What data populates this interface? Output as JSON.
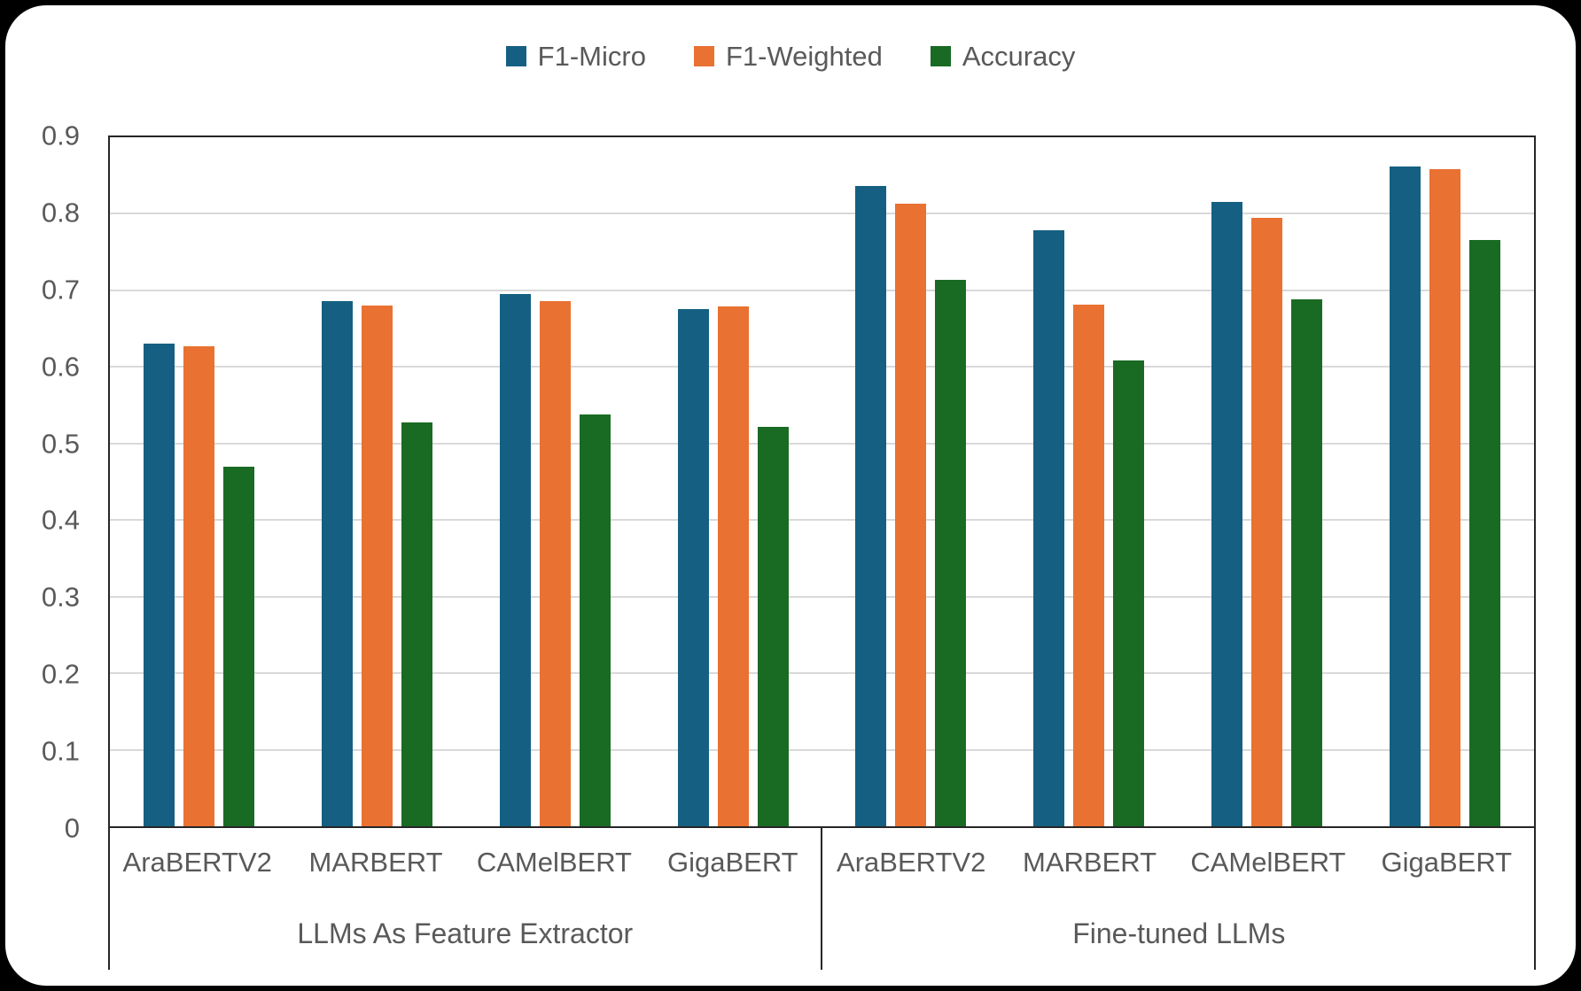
{
  "chart_data": {
    "type": "bar",
    "title": "",
    "legend_position": "top",
    "grid": true,
    "y_axis": {
      "min": 0,
      "max": 0.9,
      "step": 0.1,
      "ticks": [
        "0",
        "0.1",
        "0.2",
        "0.3",
        "0.4",
        "0.5",
        "0.6",
        "0.7",
        "0.8",
        "0.9"
      ]
    },
    "categories": [
      "AraBERTV2",
      "MARBERT",
      "CAMelBERT",
      "GigaBERT",
      "AraBERTV2",
      "MARBERT",
      "CAMelBERT",
      "GigaBERT"
    ],
    "category_groups": [
      {
        "label": "LLMs As Feature Extractor",
        "span": 4
      },
      {
        "label": "Fine-tuned LLMs",
        "span": 4
      }
    ],
    "series": [
      {
        "name": "F1-Micro",
        "color": "#156082",
        "values": [
          0.63,
          0.686,
          0.695,
          0.676,
          0.836,
          0.778,
          0.816,
          0.862
        ]
      },
      {
        "name": "F1-Weighted",
        "color": "#E97132",
        "values": [
          0.627,
          0.68,
          0.686,
          0.679,
          0.813,
          0.681,
          0.795,
          0.858
        ]
      },
      {
        "name": "Accuracy",
        "color": "#196B24",
        "values": [
          0.47,
          0.528,
          0.538,
          0.522,
          0.714,
          0.608,
          0.688,
          0.766
        ]
      }
    ]
  },
  "style_colors": {
    "gridline": "#D9D9D9",
    "axis_border": "#262626",
    "text": "#595959",
    "card_background": "#ffffff",
    "page_background": "#000000"
  }
}
